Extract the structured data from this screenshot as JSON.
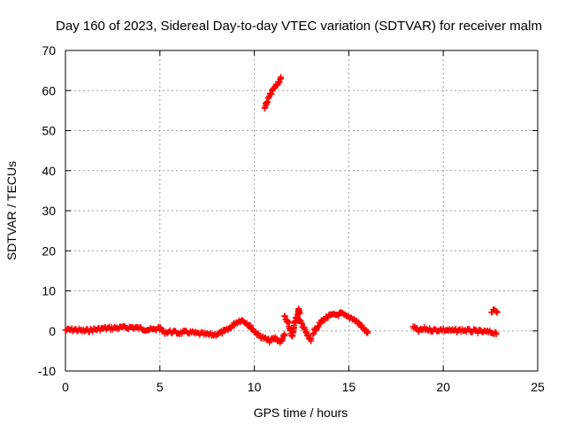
{
  "chart_data": {
    "type": "scatter",
    "title": "Day 160 of 2023, Sidereal Day-to-day VTEC variation (SDTVAR) for receiver malm",
    "xlabel": "GPS time / hours",
    "ylabel": "SDTVAR / TECUs",
    "xlim": [
      0,
      25
    ],
    "ylim": [
      -10,
      70
    ],
    "xticks": [
      0,
      5,
      10,
      15,
      20,
      25
    ],
    "yticks": [
      -10,
      0,
      10,
      20,
      30,
      40,
      50,
      60,
      70
    ],
    "grid": true,
    "marker": "+",
    "color": "#ff0000",
    "segments": [
      {
        "x": [
          0.0,
          0.5,
          1.0,
          1.5,
          2.0,
          2.5,
          3.0,
          3.5,
          4.0,
          4.5,
          4.8
        ],
        "y": [
          0.2,
          0.3,
          0.0,
          0.3,
          0.6,
          0.7,
          0.8,
          0.9,
          0.6,
          0.3,
          0.3
        ]
      },
      {
        "x": [
          4.9,
          5.2,
          5.6,
          6.0,
          6.5,
          7.0,
          7.5,
          7.8,
          8.2,
          8.6,
          9.0,
          9.3,
          9.6,
          9.9,
          10.2,
          10.5,
          10.8,
          11.1,
          11.4,
          11.6
        ],
        "y": [
          1.0,
          -0.3,
          -0.2,
          -0.5,
          -0.3,
          -0.7,
          -0.9,
          -1.0,
          -0.5,
          0.3,
          2.0,
          2.8,
          2.0,
          0.5,
          -1.0,
          -1.8,
          -2.5,
          -1.8,
          -2.8,
          -1.0
        ]
      },
      {
        "x": [
          10.55,
          10.7,
          10.85,
          11.0,
          11.15,
          11.3,
          11.4
        ],
        "y": [
          55.5,
          57.5,
          59.0,
          60.2,
          61.3,
          62.3,
          63.0
        ]
      },
      {
        "x": [
          11.6,
          11.8,
          12.0,
          12.2,
          12.4,
          12.6,
          12.8,
          13.0
        ],
        "y": [
          3.5,
          2.0,
          -1.5,
          3.5,
          2.5,
          1.0,
          -1.0,
          -2.5
        ]
      },
      {
        "x": [
          12.3,
          12.35,
          12.4
        ],
        "y": [
          4.0,
          5.2,
          4.5
        ]
      },
      {
        "x": [
          13.1,
          13.4,
          13.7,
          14.0,
          14.3,
          14.6,
          14.9,
          15.2,
          15.5,
          15.8,
          16.0
        ],
        "y": [
          -0.5,
          1.5,
          3.0,
          3.8,
          4.0,
          4.3,
          3.5,
          3.2,
          2.0,
          0.5,
          -0.5
        ]
      },
      {
        "x": [
          18.4,
          18.7,
          19.0,
          19.5,
          20.0,
          20.5,
          21.0,
          21.5,
          22.0,
          22.4,
          22.8
        ],
        "y": [
          1.0,
          0.0,
          0.5,
          0.2,
          0.3,
          0.0,
          0.2,
          0.0,
          -0.2,
          -0.3,
          -0.5
        ]
      },
      {
        "x": [
          22.55,
          22.7,
          22.85
        ],
        "y": [
          4.8,
          5.0,
          4.8
        ]
      }
    ]
  }
}
